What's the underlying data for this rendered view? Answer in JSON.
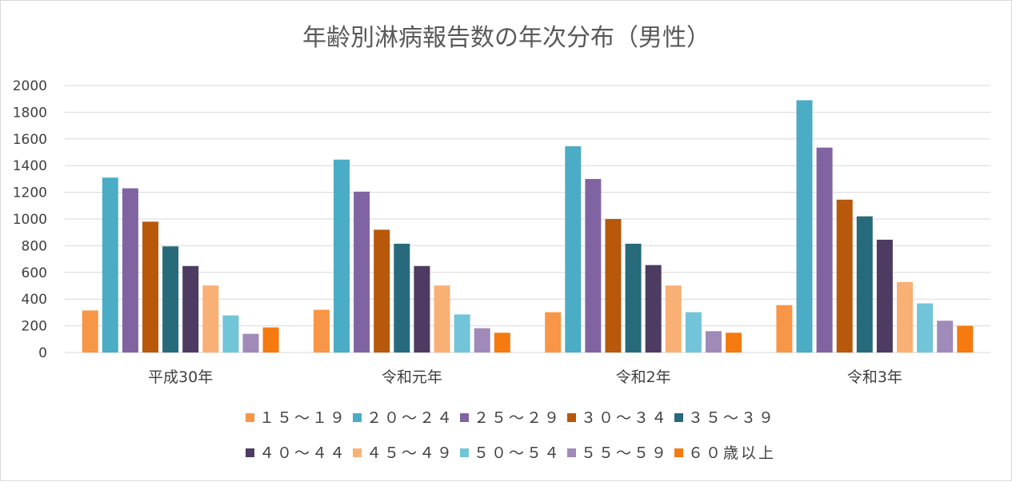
{
  "chart_data": {
    "type": "bar",
    "title": "年齢別淋病報告数の年次分布（男性）",
    "xlabel": "",
    "ylabel": "",
    "ylim": [
      0,
      2000
    ],
    "yticks": [
      0,
      200,
      400,
      600,
      800,
      1000,
      1200,
      1400,
      1600,
      1800,
      2000
    ],
    "grid": true,
    "legend_position": "bottom",
    "categories": [
      "平成30年",
      "令和元年",
      "令和2年",
      "令和3年"
    ],
    "series": [
      {
        "name": "１５～１９",
        "color": "#F79646",
        "values": [
          315,
          320,
          302,
          355
        ]
      },
      {
        "name": "２０～２４",
        "color": "#4BACC6",
        "values": [
          1310,
          1445,
          1545,
          1890
        ]
      },
      {
        "name": "２５～２９",
        "color": "#8064A2",
        "values": [
          1230,
          1205,
          1300,
          1535
        ]
      },
      {
        "name": "３０～３４",
        "color": "#B7580B",
        "values": [
          980,
          920,
          1000,
          1145
        ]
      },
      {
        "name": "３５～３９",
        "color": "#276A7C",
        "values": [
          795,
          815,
          815,
          1020
        ]
      },
      {
        "name": "４０～４４",
        "color": "#4D3B62",
        "values": [
          648,
          648,
          655,
          845
        ]
      },
      {
        "name": "４５～４９",
        "color": "#F9B074",
        "values": [
          502,
          502,
          502,
          528
        ]
      },
      {
        "name": "５０～５４",
        "color": "#72C4D8",
        "values": [
          278,
          285,
          302,
          368
        ]
      },
      {
        "name": "５５～５９",
        "color": "#9F8AB9",
        "values": [
          140,
          182,
          160,
          238
        ]
      },
      {
        "name": "６０歳以上",
        "color": "#F57A10",
        "values": [
          188,
          148,
          148,
          200
        ]
      }
    ]
  }
}
